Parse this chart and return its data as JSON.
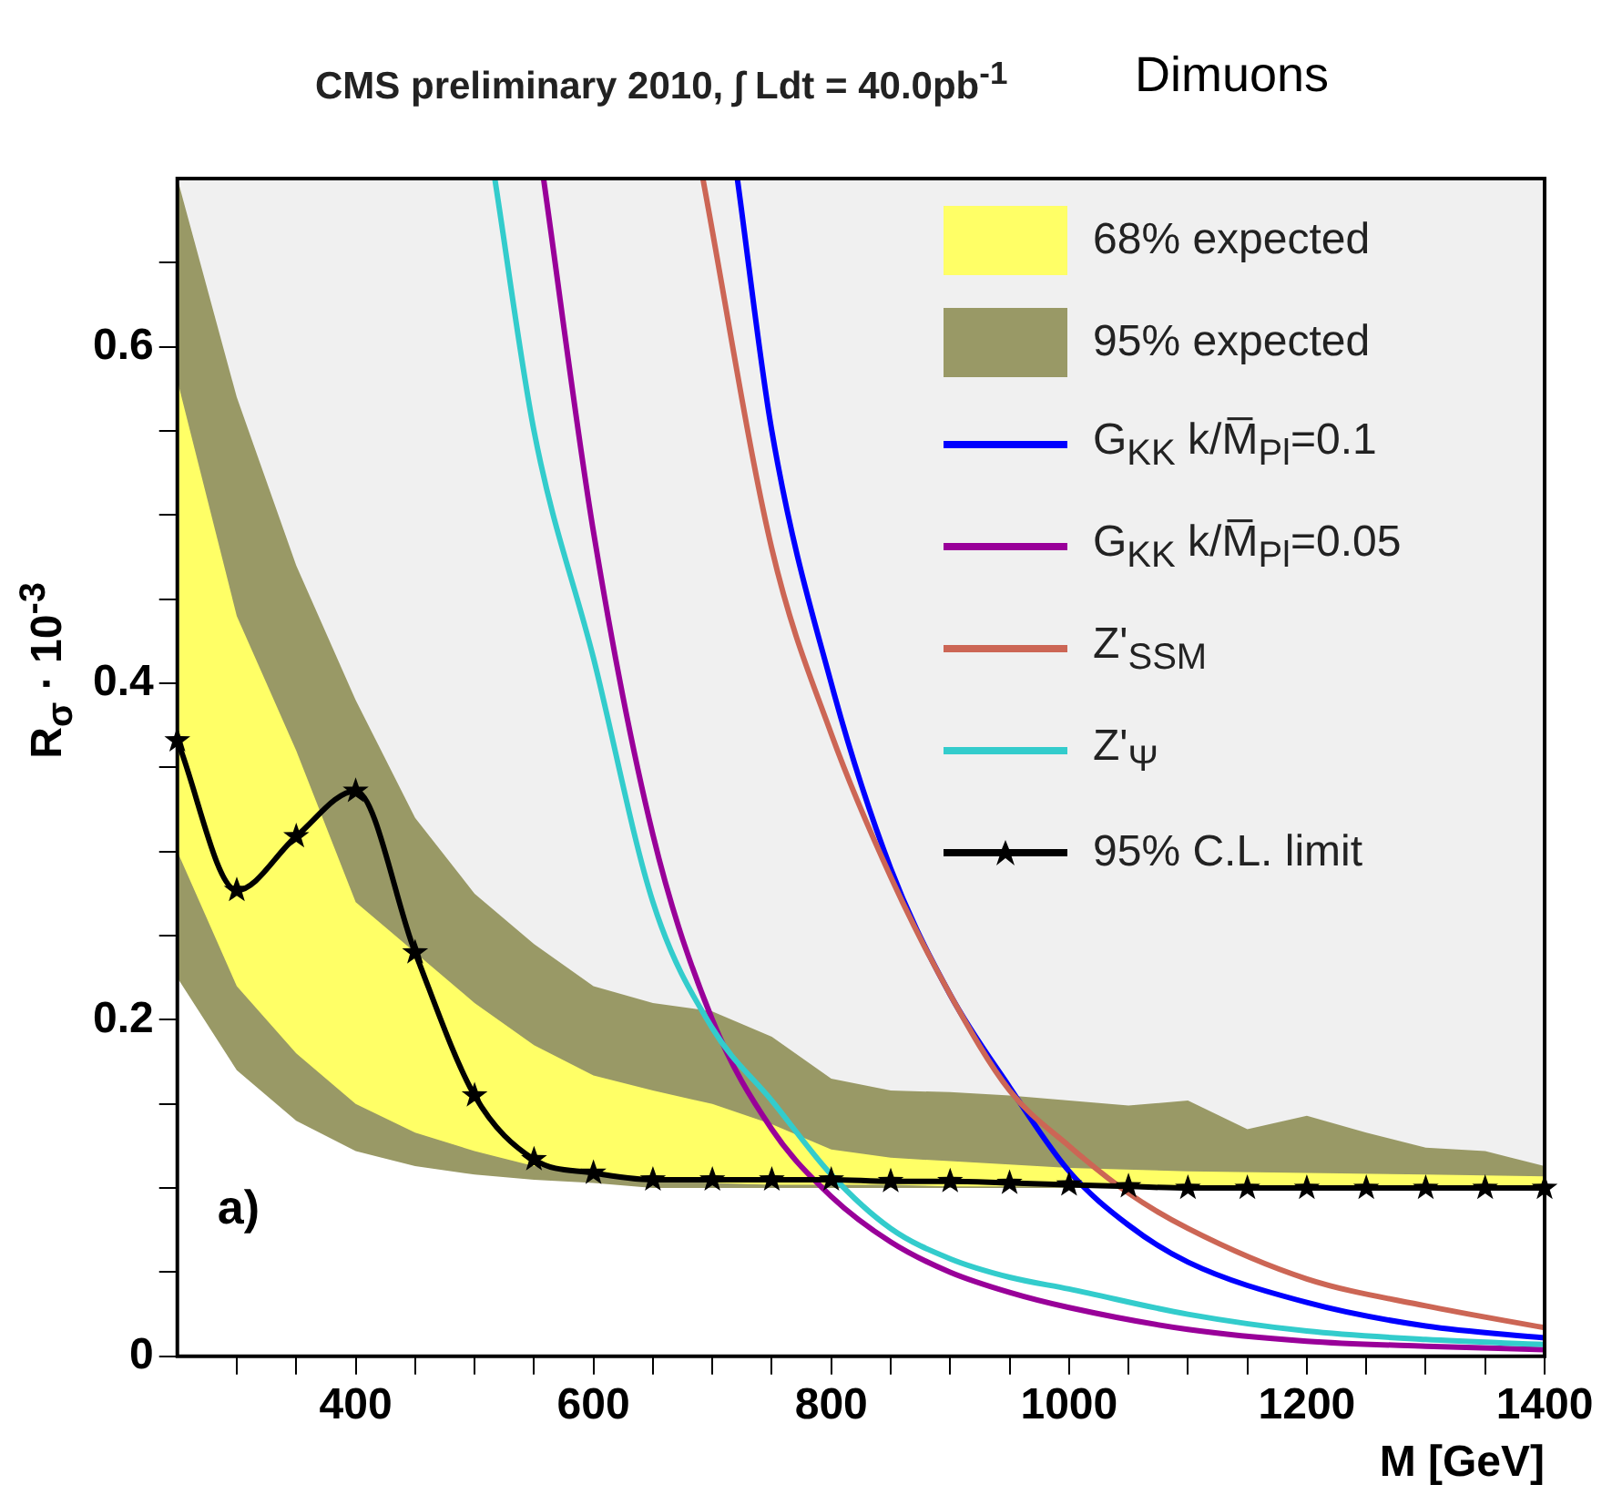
{
  "chart_data": {
    "type": "line",
    "title": "CMS preliminary 2010, ∫ Ldt = 40.0pb$^{-1}$",
    "subtitle": "Dimuons",
    "xlabel": "M [GeV]",
    "ylabel": "R$_{σ}$ · 10$^{-3}$",
    "annotations": [
      "a)"
    ],
    "xlim": [
      250,
      1400
    ],
    "ylim": [
      0,
      0.7
    ],
    "xticks": [
      {
        "value": 300,
        "label": null
      },
      {
        "value": 350,
        "label": null
      },
      400,
      {
        "value": 450,
        "label": null
      },
      {
        "value": 500,
        "label": null
      },
      {
        "value": 550,
        "label": null
      },
      600,
      {
        "value": 650,
        "label": null
      },
      {
        "value": 700,
        "label": null
      },
      {
        "value": 750,
        "label": null
      },
      800,
      {
        "value": 850,
        "label": null
      },
      {
        "value": 900,
        "label": null
      },
      {
        "value": 950,
        "label": null
      },
      1000,
      {
        "value": 1050,
        "label": null
      },
      {
        "value": 1100,
        "label": null
      },
      {
        "value": 1150,
        "label": null
      },
      1200,
      {
        "value": 1250,
        "label": null
      },
      {
        "value": 1300,
        "label": null
      },
      {
        "value": 1350,
        "label": null
      },
      1400
    ],
    "yticks": [
      0,
      {
        "value": 0.05,
        "label": null
      },
      {
        "value": 0.1,
        "label": null
      },
      {
        "value": 0.15,
        "label": null
      },
      0.2,
      {
        "value": 0.25,
        "label": null
      },
      {
        "value": 0.3,
        "label": null
      },
      {
        "value": 0.35,
        "label": null
      },
      0.4,
      {
        "value": 0.45,
        "label": null
      },
      {
        "value": 0.5,
        "label": null
      },
      {
        "value": 0.55,
        "label": null
      },
      0.6,
      {
        "value": 0.65,
        "label": null
      }
    ],
    "grid": false,
    "legend": "top right",
    "series": [
      {
        "name": "68% expected",
        "type": "line",
        "color": "#ffff66",
        "x": [
          250,
          300,
          350,
          400,
          450,
          500,
          550,
          600,
          650,
          700,
          750,
          800,
          850,
          900,
          950,
          1000,
          1100,
          1200,
          1300,
          1400
        ],
        "values": [
          null,
          null,
          null,
          null,
          null,
          null,
          null,
          null,
          null,
          null,
          null,
          null,
          null,
          null,
          null,
          null,
          null,
          null,
          null,
          null
        ],
        "lower": [
          0.3,
          0.22,
          0.18,
          0.15,
          0.133,
          0.122,
          0.113,
          0.109,
          0.105,
          0.103,
          0.102,
          0.102,
          0.102,
          0.101,
          0.101,
          0.101,
          0.101,
          0.101,
          0.101,
          0.101
        ],
        "upper": [
          0.58,
          0.44,
          0.36,
          0.27,
          0.24,
          0.21,
          0.185,
          0.167,
          0.158,
          0.15,
          0.138,
          0.123,
          0.118,
          0.116,
          0.114,
          0.112,
          0.11,
          0.109,
          0.108,
          0.107
        ]
      },
      {
        "name": "95% expected",
        "type": "line",
        "color": "#999966",
        "x": [
          250,
          300,
          350,
          400,
          450,
          500,
          550,
          600,
          650,
          700,
          750,
          800,
          850,
          900,
          950,
          1000,
          1050,
          1100,
          1150,
          1200,
          1250,
          1300,
          1350,
          1400
        ],
        "values": [
          null,
          null,
          null,
          null,
          null,
          null,
          null,
          null,
          null,
          null,
          null,
          null,
          null,
          null,
          null,
          null,
          null,
          null,
          null,
          null,
          null,
          null,
          null,
          null
        ],
        "lower": [
          0.225,
          0.17,
          0.14,
          0.122,
          0.113,
          0.108,
          0.105,
          0.103,
          0.1,
          0.1,
          0.1,
          0.1,
          0.1,
          0.1,
          0.1,
          0.1,
          0.1,
          0.1,
          0.1,
          0.1,
          0.1,
          0.1,
          0.1,
          0.1
        ],
        "upper": [
          0.7,
          0.57,
          0.47,
          0.39,
          0.32,
          0.275,
          0.245,
          0.22,
          0.21,
          0.205,
          0.19,
          0.165,
          0.158,
          0.157,
          0.155,
          0.152,
          0.149,
          0.152,
          0.135,
          0.143,
          0.133,
          0.124,
          0.122,
          0.113
        ]
      },
      {
        "name": "G$_{KK}$ k/M̅$_{Pl}$=0.1",
        "type": "line",
        "color": "#0000ff",
        "marker": "none",
        "x": [
          721,
          750,
          800,
          850,
          900,
          950,
          1000,
          1050,
          1100,
          1200,
          1300,
          1400
        ],
        "values": [
          0.7,
          0.55,
          0.4,
          0.29,
          0.215,
          0.16,
          0.11,
          0.078,
          0.056,
          0.032,
          0.018,
          0.011
        ]
      },
      {
        "name": "G$_{KK}$ k/M̅$_{Pl}$=0.05",
        "type": "line",
        "color": "#990099",
        "marker": "none",
        "x": [
          558,
          600,
          650,
          700,
          750,
          800,
          850,
          900,
          950,
          1000,
          1100,
          1200,
          1300,
          1400
        ],
        "values": [
          0.7,
          0.49,
          0.31,
          0.2,
          0.135,
          0.095,
          0.068,
          0.05,
          0.038,
          0.029,
          0.016,
          0.009,
          0.006,
          0.004
        ]
      },
      {
        "name": "Z'$_{SSM}$",
        "type": "line",
        "color": "#cc6655",
        "marker": "none",
        "x": [
          692,
          750,
          800,
          850,
          900,
          950,
          1000,
          1050,
          1100,
          1200,
          1300,
          1400
        ],
        "values": [
          0.7,
          0.48,
          0.37,
          0.285,
          0.215,
          0.158,
          0.125,
          0.097,
          0.076,
          0.046,
          0.03,
          0.017
        ]
      },
      {
        "name": "Z'$_{Ψ}$",
        "type": "line",
        "color": "#33cccc",
        "marker": "none",
        "x": [
          517,
          550,
          600,
          650,
          700,
          750,
          800,
          850,
          900,
          950,
          1000,
          1100,
          1200,
          1300,
          1400
        ],
        "values": [
          0.7,
          0.55,
          0.415,
          0.27,
          0.195,
          0.152,
          0.108,
          0.076,
          0.058,
          0.047,
          0.04,
          0.025,
          0.015,
          0.01,
          0.007
        ]
      },
      {
        "name": "95% C.L. limit",
        "type": "line",
        "color": "#000000",
        "marker": "star",
        "x": [
          250,
          300,
          350,
          400,
          450,
          500,
          550,
          600,
          650,
          700,
          750,
          800,
          850,
          900,
          950,
          1000,
          1050,
          1100,
          1150,
          1200,
          1250,
          1300,
          1350,
          1400
        ],
        "values": [
          0.366,
          0.277,
          0.309,
          0.336,
          0.24,
          0.155,
          0.117,
          0.109,
          0.105,
          0.105,
          0.105,
          0.105,
          0.104,
          0.104,
          0.103,
          0.102,
          0.101,
          0.1,
          0.1,
          0.1,
          0.1,
          0.1,
          0.1,
          0.1
        ]
      }
    ]
  }
}
